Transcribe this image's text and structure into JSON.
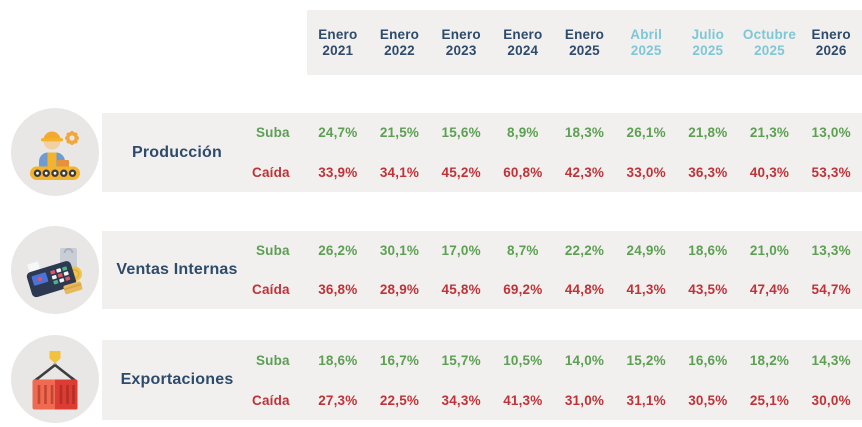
{
  "colors": {
    "navy": "#2e4b6b",
    "lightblue": "#7ec7d7",
    "green": "#5d9f53",
    "red": "#c03238",
    "panel_bg": "#f1f0ee",
    "circle_bg": "#e8e7e5"
  },
  "chart_data": {
    "type": "table",
    "title": "",
    "legend_position": "none",
    "columns": [
      {
        "month": "Enero",
        "year": "2021",
        "highlight": false
      },
      {
        "month": "Enero",
        "year": "2022",
        "highlight": false
      },
      {
        "month": "Enero",
        "year": "2023",
        "highlight": false
      },
      {
        "month": "Enero",
        "year": "2024",
        "highlight": false
      },
      {
        "month": "Enero",
        "year": "2025",
        "highlight": false
      },
      {
        "month": "Abril",
        "year": "2025",
        "highlight": true
      },
      {
        "month": "Julio",
        "year": "2025",
        "highlight": true
      },
      {
        "month": "Octubre",
        "year": "2025",
        "highlight": true
      },
      {
        "month": "Enero",
        "year": "2026",
        "highlight": false
      }
    ],
    "sections": [
      {
        "label": "Producción",
        "icon": "factory-worker-icon",
        "rows": [
          {
            "label": "Suba",
            "direction": "up",
            "values": [
              "24,7%",
              "21,5%",
              "15,6%",
              "8,9%",
              "18,3%",
              "26,1%",
              "21,8%",
              "21,3%",
              "13,0%"
            ]
          },
          {
            "label": "Caída",
            "direction": "down",
            "values": [
              "33,9%",
              "34,1%",
              "45,2%",
              "60,8%",
              "42,3%",
              "33,0%",
              "36,3%",
              "40,3%",
              "53,3%"
            ]
          }
        ]
      },
      {
        "label": "Ventas Internas",
        "icon": "pos-terminal-icon",
        "rows": [
          {
            "label": "Suba",
            "direction": "up",
            "values": [
              "26,2%",
              "30,1%",
              "17,0%",
              "8,7%",
              "22,2%",
              "24,9%",
              "18,6%",
              "21,0%",
              "13,3%"
            ]
          },
          {
            "label": "Caída",
            "direction": "down",
            "values": [
              "36,8%",
              "28,9%",
              "45,8%",
              "69,2%",
              "44,8%",
              "41,3%",
              "43,5%",
              "47,4%",
              "54,7%"
            ]
          }
        ]
      },
      {
        "label": "Exportaciones",
        "icon": "shipping-container-icon",
        "rows": [
          {
            "label": "Suba",
            "direction": "up",
            "values": [
              "18,6%",
              "16,7%",
              "15,7%",
              "10,5%",
              "14,0%",
              "15,2%",
              "16,6%",
              "18,2%",
              "14,3%"
            ]
          },
          {
            "label": "Caída",
            "direction": "down",
            "values": [
              "27,3%",
              "22,5%",
              "34,3%",
              "41,3%",
              "31,0%",
              "31,1%",
              "30,5%",
              "25,1%",
              "30,0%"
            ]
          }
        ]
      }
    ]
  }
}
